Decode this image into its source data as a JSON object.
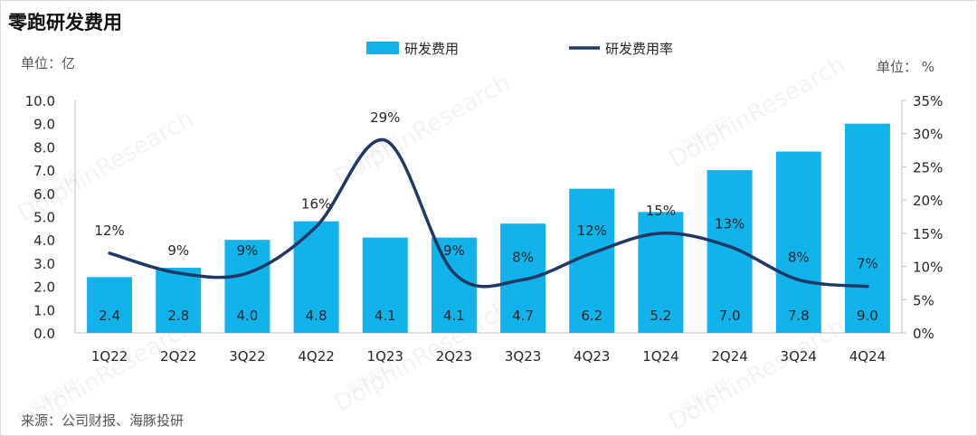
{
  "title": "零跑研发费用",
  "unit_left": "单位：亿",
  "unit_right": "单位： %",
  "source": "来源：公司财报、海豚投研",
  "watermark": {
    "cn": "海豚投研",
    "en": "DolphinResearch"
  },
  "colors": {
    "bar": "#12b2ea",
    "line": "#1f3864",
    "axis": "#bfbfbf",
    "text": "#262626"
  },
  "chart_data": {
    "type": "bar",
    "categories": [
      "1Q22",
      "2Q22",
      "3Q22",
      "4Q22",
      "1Q23",
      "2Q23",
      "3Q23",
      "4Q23",
      "1Q24",
      "2Q24",
      "3Q24",
      "4Q24"
    ],
    "series": [
      {
        "name": "研发费用",
        "type": "bar",
        "axis": "left",
        "values": [
          2.4,
          2.8,
          4.0,
          4.8,
          4.1,
          4.1,
          4.7,
          6.2,
          5.2,
          7.0,
          7.8,
          9.0
        ],
        "labels": [
          "2.4",
          "2.8",
          "4.0",
          "4.8",
          "4.1",
          "4.1",
          "4.7",
          "6.2",
          "5.2",
          "7.0",
          "7.8",
          "9.0"
        ]
      },
      {
        "name": "研发费用率",
        "type": "line",
        "axis": "right",
        "values": [
          12,
          9,
          9,
          16,
          29,
          9,
          8,
          12,
          15,
          13,
          8,
          7
        ],
        "labels": [
          "12%",
          "9%",
          "9%",
          "16%",
          "29%",
          "9%",
          "8%",
          "12%",
          "15%",
          "13%",
          "8%",
          "7%"
        ]
      }
    ],
    "ylim_left": [
      0,
      10
    ],
    "yticks_left": [
      "0.0",
      "1.0",
      "2.0",
      "3.0",
      "4.0",
      "5.0",
      "6.0",
      "7.0",
      "8.0",
      "9.0",
      "10.0"
    ],
    "ylim_right": [
      0,
      35
    ],
    "yticks_right": [
      "0%",
      "5%",
      "10%",
      "15%",
      "20%",
      "25%",
      "30%",
      "35%"
    ],
    "legend_position": "top-center",
    "grid": false
  }
}
